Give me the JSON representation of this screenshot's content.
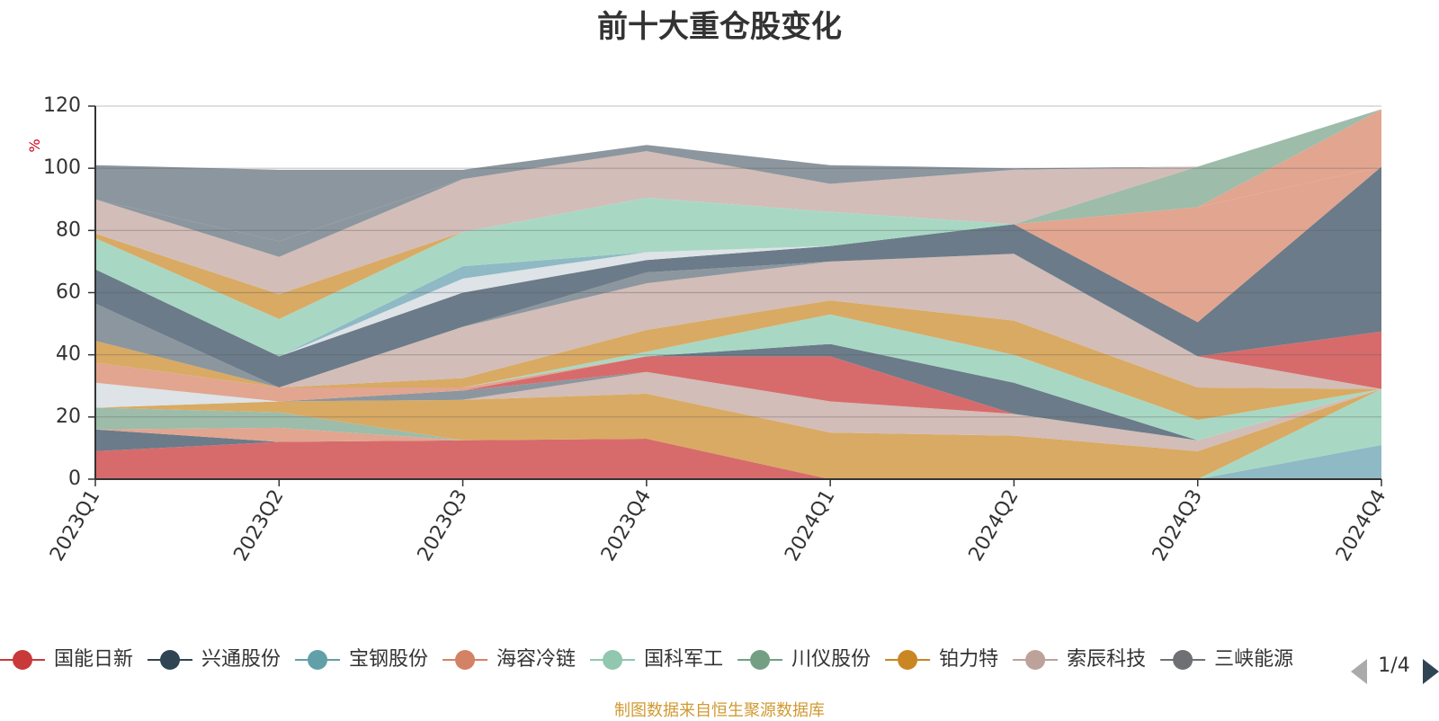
{
  "chart_data": {
    "type": "area",
    "stacked": true,
    "title": "前十大重仓股变化",
    "ylabel": "%",
    "ylim": [
      0,
      120
    ],
    "yticks": [
      0,
      20,
      40,
      60,
      80,
      100,
      120
    ],
    "grid": true,
    "legend_position": "bottom",
    "categories": [
      "2023Q1",
      "2023Q2",
      "2023Q3",
      "2023Q4",
      "2024Q1",
      "2024Q2",
      "2024Q3",
      "2024Q4"
    ],
    "series": [
      {
        "name": "国能日新",
        "color": "#d76b6b",
        "values": [
          9,
          12,
          12.5,
          13,
          0,
          0,
          0,
          0
        ]
      },
      {
        "name": "兴通股份",
        "color": "#6b7b89",
        "values": [
          7,
          0,
          0,
          0,
          0,
          0,
          0,
          0
        ]
      },
      {
        "name": "宝钢股份",
        "color": "#8fb9c4",
        "values": [
          0,
          0,
          0,
          0,
          0,
          0,
          0,
          11
        ]
      },
      {
        "name": "海容冷链",
        "color": "#e2a590",
        "values": [
          0,
          4.5,
          0,
          0,
          0,
          0,
          0,
          0
        ]
      },
      {
        "name": "国科军工",
        "color": "#a8d8c4",
        "values": [
          0,
          0,
          0,
          0,
          0,
          0,
          0,
          18
        ]
      },
      {
        "name": "川仪股份",
        "color": "#9dbcaa",
        "values": [
          7,
          5,
          0,
          0,
          0,
          0,
          0,
          0
        ]
      },
      {
        "name": "铂力特",
        "color": "#d9aa63",
        "values": [
          0,
          3.5,
          13,
          14.5,
          15,
          14,
          9,
          0
        ]
      },
      {
        "name": "索辰科技",
        "color": "#d2bdb8",
        "values": [
          0,
          0,
          0,
          7,
          10,
          7,
          3.5,
          0
        ]
      },
      {
        "name": "三峡能源",
        "color": "#8c969e",
        "values": [
          0,
          0,
          3,
          0,
          0,
          0,
          0,
          0
        ]
      },
      {
        "name": "国能日新 ",
        "color": "#d76b6b",
        "values": [
          0,
          0,
          0,
          5,
          14.5,
          0,
          0,
          0
        ]
      },
      {
        "name": "兴通股份 ",
        "color": "#6b7b89",
        "values": [
          0,
          0,
          0,
          0,
          4,
          10,
          0,
          0
        ]
      },
      {
        "name": "宝钢股份 ",
        "color": "#dde3e6",
        "values": [
          8,
          0,
          0,
          0,
          0,
          0,
          0,
          0
        ]
      },
      {
        "name": "海容冷链 ",
        "color": "#e2a590",
        "values": [
          6.5,
          4.5,
          1,
          0,
          0,
          0,
          0,
          0
        ]
      },
      {
        "name": "国科军工 ",
        "color": "#a8d8c4",
        "values": [
          0,
          0,
          0,
          1.5,
          9.5,
          9,
          6.5,
          0
        ]
      },
      {
        "name": "铂力特 ",
        "color": "#d9aa63",
        "values": [
          7,
          0,
          3,
          7,
          4.5,
          11,
          10.5,
          0
        ]
      },
      {
        "name": "索辰科技 ",
        "color": "#d2bdb8",
        "values": [
          0,
          0,
          16.5,
          15,
          12.5,
          21.5,
          10,
          0
        ]
      },
      {
        "name": "三峡能源 ",
        "color": "#8c969e",
        "values": [
          12,
          0,
          0,
          3.5,
          0,
          0,
          0,
          0
        ]
      },
      {
        "name": "国能日新  ",
        "color": "#d76b6b",
        "values": [
          0,
          0,
          0,
          0,
          0,
          0,
          0,
          18.5
        ]
      },
      {
        "name": "兴通股份  ",
        "color": "#6b7b89",
        "values": [
          11,
          10,
          11,
          4,
          5,
          9.5,
          11,
          53
        ]
      },
      {
        "name": "宝钢股份  ",
        "color": "#dde3e6",
        "values": [
          0,
          0,
          4.5,
          2.5,
          0,
          0,
          0,
          0
        ]
      },
      {
        "name": "宝钢股份   ",
        "color": "#8fb9c4",
        "values": [
          0,
          0,
          4,
          0,
          0,
          0,
          0,
          0
        ]
      },
      {
        "name": "国科军工  ",
        "color": "#a8d8c4",
        "values": [
          10,
          12,
          11,
          17.5,
          11,
          0,
          0,
          0
        ]
      },
      {
        "name": "海容冷链  ",
        "color": "#e2a590",
        "values": [
          0,
          0,
          0,
          0,
          0,
          0,
          37,
          0
        ]
      },
      {
        "name": "海容冷链   ",
        "color": "#e2a590",
        "values": [
          0,
          0,
          0,
          0,
          0,
          0,
          0,
          18.5
        ]
      },
      {
        "name": "川仪股份  ",
        "color": "#9dbcaa",
        "values": [
          0,
          0,
          0,
          0,
          0,
          0,
          13,
          0
        ]
      },
      {
        "name": "铂力特  ",
        "color": "#d9aa63",
        "values": [
          1.5,
          8,
          0,
          0,
          0,
          0,
          0,
          0
        ]
      },
      {
        "name": "索辰科技  ",
        "color": "#d2bdb8",
        "values": [
          11,
          12,
          17,
          15,
          9,
          17.5,
          0,
          0
        ]
      },
      {
        "name": "三峡能源  ",
        "color": "#8c969e",
        "values": [
          0,
          5,
          0,
          0,
          0,
          0,
          0,
          0
        ]
      },
      {
        "name": "三峡能源   ",
        "color": "#8c969e",
        "values": [
          11,
          23,
          3,
          2,
          6,
          0.5,
          0,
          0
        ]
      }
    ]
  },
  "legend": {
    "items": [
      {
        "label": "国能日新",
        "color": "#c9393a"
      },
      {
        "label": "兴通股份",
        "color": "#2f4554"
      },
      {
        "label": "宝钢股份",
        "color": "#61a0a8"
      },
      {
        "label": "海容冷链",
        "color": "#d48265"
      },
      {
        "label": "国科军工",
        "color": "#91c7ae"
      },
      {
        "label": "川仪股份",
        "color": "#749f83"
      },
      {
        "label": "铂力特",
        "color": "#ca8622"
      },
      {
        "label": "索辰科技",
        "color": "#bda29a"
      },
      {
        "label": "三峡能源",
        "color": "#6e7074"
      }
    ],
    "page_indicator": "1/4"
  },
  "footer": "制图数据来自恒生聚源数据库"
}
